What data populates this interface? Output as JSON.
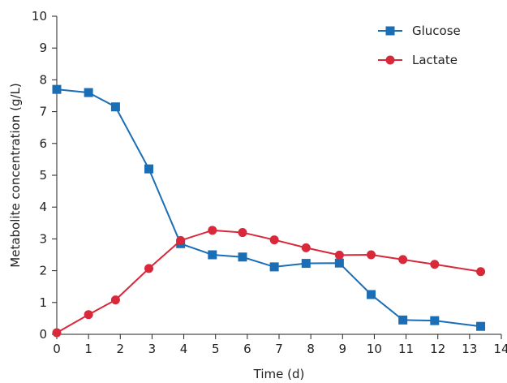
{
  "chart_data": {
    "type": "line",
    "title": "",
    "xlabel": "Time (d)",
    "ylabel": "Metabolite concentration (g/L)",
    "xlim": [
      0,
      14
    ],
    "ylim": [
      0,
      10
    ],
    "xticks": [
      0,
      1,
      2,
      3,
      4,
      5,
      6,
      7,
      8,
      9,
      10,
      11,
      12,
      13,
      14
    ],
    "yticks": [
      0,
      1,
      2,
      3,
      4,
      5,
      6,
      7,
      8,
      9,
      10
    ],
    "grid": false,
    "legend_position": "top-right",
    "series": [
      {
        "name": "Glucose",
        "color": "#1a6eb5",
        "marker": "square",
        "x": [
          0,
          1,
          1.85,
          2.9,
          3.9,
          4.9,
          5.85,
          6.85,
          7.85,
          8.9,
          9.9,
          10.9,
          11.9,
          13.35
        ],
        "y": [
          7.7,
          7.6,
          7.15,
          5.2,
          2.85,
          2.5,
          2.43,
          2.12,
          2.23,
          2.24,
          1.25,
          0.45,
          0.43,
          0.25
        ]
      },
      {
        "name": "Lactate",
        "color": "#d8283a",
        "marker": "circle",
        "x": [
          0,
          1,
          1.85,
          2.9,
          3.9,
          4.9,
          5.85,
          6.85,
          7.85,
          8.9,
          9.9,
          10.9,
          11.9,
          13.35
        ],
        "y": [
          0.05,
          0.62,
          1.08,
          2.07,
          2.95,
          3.27,
          3.2,
          2.97,
          2.72,
          2.49,
          2.5,
          2.35,
          2.2,
          1.97
        ]
      }
    ]
  }
}
